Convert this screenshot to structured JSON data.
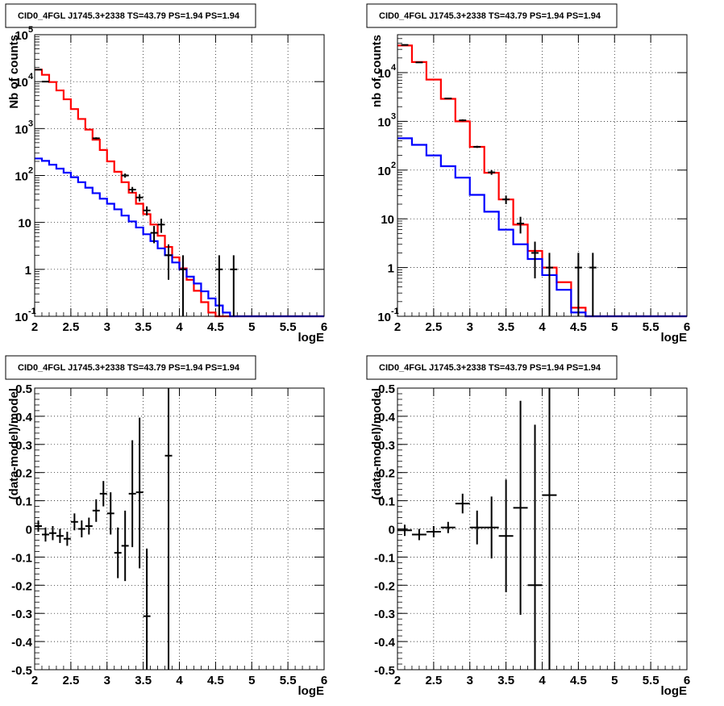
{
  "chart_data": [
    {
      "type": "line",
      "title": "CID0_4FGL J1745.3+2338 TS=43.79 PS=1.94 PS=1.94",
      "xlabel": "logE",
      "ylabel": "Nb of counts",
      "xlim": [
        2,
        6
      ],
      "ylim": [
        0.1,
        100000
      ],
      "yscale": "log",
      "grid": true,
      "xticks": [
        "2",
        "2.5",
        "3",
        "3.5",
        "4",
        "4.5",
        "5",
        "5.5",
        "6"
      ],
      "yticks": [
        {
          "value": 0.1,
          "label": "10",
          "sup": "-1"
        },
        {
          "value": 1,
          "label": "1",
          "sup": ""
        },
        {
          "value": 10,
          "label": "10",
          "sup": ""
        },
        {
          "value": 100,
          "label": "10",
          "sup": "2"
        },
        {
          "value": 1000,
          "label": "10",
          "sup": "3"
        },
        {
          "value": 10000,
          "label": "10",
          "sup": "4"
        },
        {
          "value": 100000,
          "label": "10",
          "sup": "5"
        }
      ],
      "bin_edges": [
        2,
        2.1,
        2.2,
        2.3,
        2.4,
        2.5,
        2.6,
        2.7,
        2.8,
        2.9,
        3,
        3.1,
        3.2,
        3.3,
        3.4,
        3.5,
        3.6,
        3.7,
        3.8,
        3.9,
        4,
        4.1,
        4.2,
        4.3,
        4.4,
        4.5,
        4.6,
        4.7,
        4.8,
        4.9,
        5,
        5.1,
        5.2,
        5.3,
        5.4,
        5.5,
        5.6,
        5.7,
        5.8,
        5.9,
        6
      ],
      "series": [
        {
          "color": "#ff0000",
          "values": [
            18000,
            14000,
            9800,
            6500,
            4200,
            2600,
            1600,
            950,
            580,
            350,
            200,
            120,
            72,
            43,
            25,
            15,
            9,
            5.2,
            3,
            1.8,
            1.05,
            0.6,
            0.35,
            0.2,
            0.12,
            0.07,
            0.1,
            0.1,
            0.1,
            0.1,
            0.1,
            0.1,
            0.1,
            0.1,
            0.1,
            0.1,
            0.1,
            0.1,
            0.1,
            0.1
          ]
        },
        {
          "color": "#0000ff",
          "values": [
            230,
            205,
            170,
            140,
            115,
            92,
            72,
            55,
            42,
            32,
            25,
            19,
            14,
            10.5,
            7.8,
            5.6,
            4,
            2.8,
            2,
            1.4,
            1,
            0.7,
            0.5,
            0.34,
            0.24,
            0.17,
            0.12,
            0.1,
            0.1,
            0.1,
            0.1,
            0.1,
            0.1,
            0.1,
            0.1,
            0.1,
            0.1,
            0.1,
            0.1,
            0.1
          ]
        }
      ],
      "points": [
        {
          "x": 2.05,
          "y": 18000,
          "lo": 17800,
          "hi": 18200
        },
        {
          "x": 2.15,
          "y": 10000,
          "lo": 9900,
          "hi": 10100
        },
        {
          "x": 2.85,
          "y": 620,
          "lo": 590,
          "hi": 650
        },
        {
          "x": 3.25,
          "y": 100,
          "lo": 90,
          "hi": 110
        },
        {
          "x": 3.35,
          "y": 50,
          "lo": 43,
          "hi": 57
        },
        {
          "x": 3.45,
          "y": 34,
          "lo": 28,
          "hi": 40
        },
        {
          "x": 3.55,
          "y": 18,
          "lo": 14,
          "hi": 22
        },
        {
          "x": 3.65,
          "y": 6,
          "lo": 3.6,
          "hi": 8.4
        },
        {
          "x": 3.75,
          "y": 9,
          "lo": 6,
          "hi": 12
        },
        {
          "x": 3.85,
          "y": 2,
          "lo": 0.6,
          "hi": 3.4
        },
        {
          "x": 4.05,
          "y": 1,
          "lo": 0.1,
          "hi": 2
        },
        {
          "x": 4.55,
          "y": 1,
          "lo": 0.1,
          "hi": 2
        },
        {
          "x": 4.75,
          "y": 1,
          "lo": 0.1,
          "hi": 2
        }
      ]
    },
    {
      "type": "line",
      "title": "CID0_4FGL J1745.3+2338 TS=43.79 PS=1.94 PS=1.94",
      "xlabel": "logE",
      "ylabel": "nb of counts",
      "xlim": [
        2,
        6
      ],
      "ylim": [
        0.1,
        60000
      ],
      "yscale": "log",
      "grid": true,
      "xticks": [
        "2",
        "2.5",
        "3",
        "3.5",
        "4",
        "4.5",
        "5",
        "5.5",
        "6"
      ],
      "yticks": [
        {
          "value": 0.1,
          "label": "10",
          "sup": "-1"
        },
        {
          "value": 1,
          "label": "1",
          "sup": ""
        },
        {
          "value": 10,
          "label": "10",
          "sup": ""
        },
        {
          "value": 100,
          "label": "10",
          "sup": "2"
        },
        {
          "value": 1000,
          "label": "10",
          "sup": "3"
        },
        {
          "value": 10000,
          "label": "10",
          "sup": "4"
        }
      ],
      "bin_edges": [
        2,
        2.2,
        2.4,
        2.6,
        2.8,
        3,
        3.2,
        3.4,
        3.6,
        3.8,
        4,
        4.2,
        4.4,
        4.6,
        4.8,
        5,
        5.2,
        5.4,
        5.6,
        5.8,
        6
      ],
      "series": [
        {
          "color": "#ff0000",
          "values": [
            36000,
            16500,
            7200,
            2900,
            1000,
            300,
            88,
            25,
            7.6,
            2.2,
            1,
            0.5,
            0.15,
            0.1,
            0.1,
            0.1,
            0.1,
            0.1,
            0.1,
            0.1
          ]
        },
        {
          "color": "#0000ff",
          "values": [
            450,
            330,
            200,
            120,
            70,
            31,
            14,
            6,
            3,
            1.5,
            0.7,
            0.35,
            0.12,
            0.1,
            0.1,
            0.1,
            0.1,
            0.1,
            0.1,
            0.1
          ]
        }
      ],
      "points": [
        {
          "x": 2.1,
          "y": 37000,
          "lo": 36800,
          "hi": 37200
        },
        {
          "x": 2.3,
          "y": 16200,
          "lo": 16000,
          "hi": 16400
        },
        {
          "x": 2.7,
          "y": 2950,
          "lo": 2850,
          "hi": 3050
        },
        {
          "x": 2.9,
          "y": 1050,
          "lo": 1000,
          "hi": 1100
        },
        {
          "x": 3.1,
          "y": 300,
          "lo": 285,
          "hi": 315
        },
        {
          "x": 3.3,
          "y": 90,
          "lo": 80,
          "hi": 100
        },
        {
          "x": 3.5,
          "y": 25,
          "lo": 20,
          "hi": 30
        },
        {
          "x": 3.7,
          "y": 8,
          "lo": 5,
          "hi": 11
        },
        {
          "x": 3.9,
          "y": 2,
          "lo": 0.6,
          "hi": 3.4
        },
        {
          "x": 4.1,
          "y": 1,
          "lo": 0.1,
          "hi": 2
        },
        {
          "x": 4.5,
          "y": 1,
          "lo": 0.1,
          "hi": 2
        },
        {
          "x": 4.7,
          "y": 1,
          "lo": 0.1,
          "hi": 2
        }
      ]
    },
    {
      "type": "scatter",
      "title": "CID0_4FGL J1745.3+2338 TS=43.79 PS=1.94 PS=1.94",
      "xlabel": "logE",
      "ylabel": "(data-model)/model",
      "xlim": [
        2,
        6
      ],
      "ylim": [
        -0.5,
        0.5
      ],
      "grid": true,
      "xticks": [
        "2",
        "2.5",
        "3",
        "3.5",
        "4",
        "4.5",
        "5",
        "5.5",
        "6"
      ],
      "yticks": [
        "-0.5",
        "-0.4",
        "-0.3",
        "-0.2",
        "-0.1",
        "0",
        "0.1",
        "0.2",
        "0.3",
        "0.4",
        "0.5"
      ],
      "xerr": 0.05,
      "points": [
        {
          "x": 2.05,
          "y": 0.01,
          "lo": -0.01,
          "hi": 0.03
        },
        {
          "x": 2.15,
          "y": -0.02,
          "lo": -0.045,
          "hi": 0.005
        },
        {
          "x": 2.25,
          "y": -0.015,
          "lo": -0.04,
          "hi": 0.01
        },
        {
          "x": 2.35,
          "y": -0.025,
          "lo": -0.05,
          "hi": 0.0
        },
        {
          "x": 2.45,
          "y": -0.035,
          "lo": -0.06,
          "hi": -0.01
        },
        {
          "x": 2.55,
          "y": 0.025,
          "lo": -0.005,
          "hi": 0.055
        },
        {
          "x": 2.65,
          "y": 0.0,
          "lo": -0.03,
          "hi": 0.03
        },
        {
          "x": 2.75,
          "y": 0.01,
          "lo": -0.02,
          "hi": 0.04
        },
        {
          "x": 2.85,
          "y": 0.065,
          "lo": 0.025,
          "hi": 0.105
        },
        {
          "x": 2.95,
          "y": 0.125,
          "lo": 0.08,
          "hi": 0.17
        },
        {
          "x": 3.05,
          "y": 0.055,
          "lo": -0.02,
          "hi": 0.13
        },
        {
          "x": 3.15,
          "y": -0.085,
          "lo": -0.175,
          "hi": 0.005
        },
        {
          "x": 3.25,
          "y": -0.06,
          "lo": -0.185,
          "hi": 0.065
        },
        {
          "x": 3.35,
          "y": 0.125,
          "lo": -0.065,
          "hi": 0.315
        },
        {
          "x": 3.45,
          "y": 0.13,
          "lo": -0.14,
          "hi": 0.395
        },
        {
          "x": 3.55,
          "y": -0.31,
          "lo": -0.5,
          "hi": -0.07
        },
        {
          "x": 3.85,
          "y": 0.26,
          "lo": -0.5,
          "hi": 0.5
        }
      ]
    },
    {
      "type": "scatter",
      "title": "CID0_4FGL J1745.3+2338 TS=43.79 PS=1.94 PS=1.94",
      "xlabel": "logE",
      "ylabel": "(data-model)/model",
      "xlim": [
        2,
        6
      ],
      "ylim": [
        -0.5,
        0.5
      ],
      "grid": true,
      "xticks": [
        "2",
        "2.5",
        "3",
        "3.5",
        "4",
        "4.5",
        "5",
        "5.5",
        "6"
      ],
      "yticks": [
        "-0.5",
        "-0.4",
        "-0.3",
        "-0.2",
        "-0.1",
        "0",
        "0.1",
        "0.2",
        "0.3",
        "0.4",
        "0.5"
      ],
      "xerr": 0.1,
      "points": [
        {
          "x": 2.1,
          "y": -0.005,
          "lo": -0.025,
          "hi": 0.015
        },
        {
          "x": 2.3,
          "y": -0.02,
          "lo": -0.04,
          "hi": 0.0
        },
        {
          "x": 2.5,
          "y": -0.01,
          "lo": -0.03,
          "hi": 0.01
        },
        {
          "x": 2.7,
          "y": 0.005,
          "lo": -0.015,
          "hi": 0.025
        },
        {
          "x": 2.9,
          "y": 0.09,
          "lo": 0.055,
          "hi": 0.125
        },
        {
          "x": 3.1,
          "y": 0.005,
          "lo": -0.055,
          "hi": 0.065
        },
        {
          "x": 3.3,
          "y": 0.005,
          "lo": -0.105,
          "hi": 0.115
        },
        {
          "x": 3.5,
          "y": -0.025,
          "lo": -0.225,
          "hi": 0.175
        },
        {
          "x": 3.7,
          "y": 0.075,
          "lo": -0.305,
          "hi": 0.455
        },
        {
          "x": 3.9,
          "y": -0.2,
          "lo": -0.5,
          "hi": 0.37
        },
        {
          "x": 4.1,
          "y": 0.12,
          "lo": -0.5,
          "hi": 0.5
        }
      ]
    }
  ]
}
